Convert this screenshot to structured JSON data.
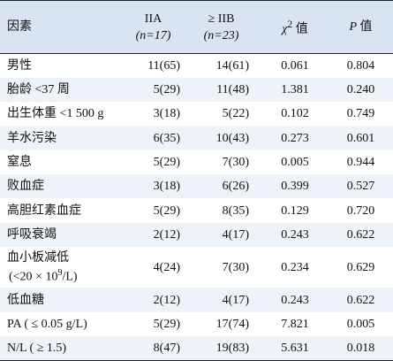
{
  "table": {
    "headers": {
      "factor": "因素",
      "group_a": "IIA",
      "group_a_n": "(n=17)",
      "group_b": "≥ IIB",
      "group_b_n": "(n=23)",
      "chi_symbol": "χ",
      "chi_sup": "2",
      "chi_suffix": " 值",
      "p_symbol": "P",
      "p_suffix": " 值"
    },
    "rows": [
      {
        "factor": "男性",
        "a": "11(65)",
        "b": "14(61)",
        "chi2": "0.061",
        "p": "0.804"
      },
      {
        "factor": "胎龄 <37 周",
        "a": "5(29)",
        "b": "11(48)",
        "chi2": "1.381",
        "p": "0.240"
      },
      {
        "factor": "出生体重 <1 500 g",
        "a": "3(18)",
        "b": "5(22)",
        "chi2": "0.102",
        "p": "0.749"
      },
      {
        "factor": "羊水污染",
        "a": "6(35)",
        "b": "10(43)",
        "chi2": "0.273",
        "p": "0.601"
      },
      {
        "factor": "窒息",
        "a": "5(29)",
        "b": "7(30)",
        "chi2": "0.005",
        "p": "0.944"
      },
      {
        "factor": "败血症",
        "a": "3(18)",
        "b": "6(26)",
        "chi2": "0.399",
        "p": "0.527"
      },
      {
        "factor": "高胆红素血症",
        "a": "5(29)",
        "b": "8(35)",
        "chi2": "0.129",
        "p": "0.720"
      },
      {
        "factor": "呼吸衰竭",
        "a": "2(12)",
        "b": "4(17)",
        "chi2": "0.243",
        "p": "0.622"
      },
      {
        "factor_line1": "血小板减低",
        "factor_line2_pre": "(<20 × 10",
        "factor_line2_sup": "9",
        "factor_line2_post": "/L)",
        "a": "4(24)",
        "b": "7(30)",
        "chi2": "0.234",
        "p": "0.629"
      },
      {
        "factor": "低血糖",
        "a": "2(12)",
        "b": "4(17)",
        "chi2": "0.243",
        "p": "0.622"
      },
      {
        "factor": "PA ( ≤ 0.05 g/L)",
        "a": "5(29)",
        "b": "17(74)",
        "chi2": "7.821",
        "p": "0.005"
      },
      {
        "factor": "N/L ( ≥ 1.5)",
        "a": "8(47)",
        "b": "19(83)",
        "chi2": "5.631",
        "p": "0.018"
      }
    ]
  }
}
